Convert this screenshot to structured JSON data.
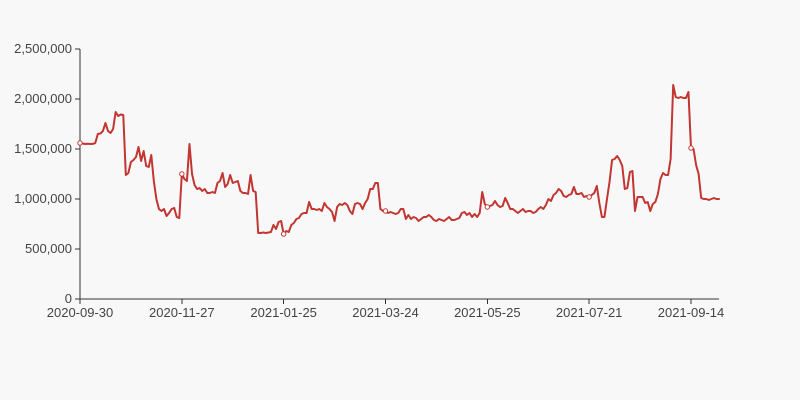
{
  "chart_data": {
    "type": "line",
    "title": "",
    "xlabel": "",
    "ylabel": "",
    "ylim": [
      0,
      2500000
    ],
    "grid": false,
    "colors": {
      "line": "#c23531",
      "axis": "#333333",
      "background": "#f8f8f8"
    },
    "y_ticks": [
      0,
      500000,
      1000000,
      1500000,
      2000000,
      2500000
    ],
    "y_tick_labels": [
      "0",
      "500,000",
      "1,000,000",
      "1,500,000",
      "2,000,000",
      "2,500,000"
    ],
    "x_tick_labels": [
      "2020-09-30",
      "2020-11-27",
      "2021-01-25",
      "2021-03-24",
      "2021-05-25",
      "2021-07-21",
      "2021-09-14"
    ],
    "x_tick_indices": [
      0,
      40,
      80,
      120,
      160,
      200,
      240
    ],
    "total_points": 252,
    "series": [
      {
        "values": [
          1560000,
          1555000,
          1550000,
          1552000,
          1550000,
          1551000,
          1560000,
          1650000,
          1655000,
          1680000,
          1760000,
          1680000,
          1660000,
          1700000,
          1870000,
          1830000,
          1845000,
          1840000,
          1240000,
          1260000,
          1370000,
          1390000,
          1420000,
          1520000,
          1380000,
          1480000,
          1330000,
          1320000,
          1440000,
          1180000,
          1000000,
          900000,
          880000,
          900000,
          830000,
          860000,
          900000,
          910000,
          820000,
          810000,
          1250000,
          1200000,
          1180000,
          1550000,
          1250000,
          1140000,
          1100000,
          1110000,
          1080000,
          1100000,
          1060000,
          1060000,
          1070000,
          1060000,
          1160000,
          1180000,
          1260000,
          1120000,
          1150000,
          1240000,
          1160000,
          1170000,
          1180000,
          1080000,
          1060000,
          1060000,
          1050000,
          1240000,
          1080000,
          1070000,
          660000,
          660000,
          665000,
          660000,
          665000,
          670000,
          740000,
          700000,
          770000,
          780000,
          650000,
          680000,
          670000,
          740000,
          760000,
          800000,
          810000,
          850000,
          860000,
          860000,
          970000,
          900000,
          900000,
          890000,
          900000,
          880000,
          960000,
          920000,
          900000,
          870000,
          780000,
          920000,
          950000,
          940000,
          960000,
          940000,
          880000,
          850000,
          950000,
          960000,
          950000,
          900000,
          960000,
          1000000,
          1100000,
          1100000,
          1160000,
          1160000,
          900000,
          880000,
          880000,
          860000,
          870000,
          860000,
          850000,
          860000,
          900000,
          900000,
          800000,
          840000,
          800000,
          820000,
          810000,
          780000,
          800000,
          820000,
          820000,
          840000,
          820000,
          790000,
          780000,
          800000,
          790000,
          780000,
          800000,
          820000,
          790000,
          790000,
          800000,
          810000,
          860000,
          870000,
          840000,
          860000,
          820000,
          850000,
          820000,
          860000,
          1070000,
          950000,
          920000,
          930000,
          940000,
          980000,
          940000,
          920000,
          930000,
          1010000,
          960000,
          900000,
          900000,
          880000,
          860000,
          880000,
          900000,
          870000,
          880000,
          880000,
          860000,
          870000,
          900000,
          920000,
          900000,
          940000,
          1000000,
          980000,
          1040000,
          1060000,
          1100000,
          1080000,
          1030000,
          1020000,
          1040000,
          1050000,
          1120000,
          1050000,
          1050000,
          1060000,
          1020000,
          1030000,
          1020000,
          1040000,
          1060000,
          1130000,
          960000,
          820000,
          820000,
          1000000,
          1170000,
          1390000,
          1400000,
          1430000,
          1390000,
          1330000,
          1100000,
          1110000,
          1270000,
          1280000,
          880000,
          1020000,
          1020000,
          1020000,
          960000,
          970000,
          880000,
          950000,
          970000,
          1050000,
          1200000,
          1260000,
          1240000,
          1240000,
          1400000,
          2140000,
          2020000,
          2010000,
          2020000,
          2010000,
          2010000,
          2070000,
          1510000,
          1500000,
          1340000,
          1250000,
          1010000,
          1000000,
          1000000,
          990000,
          1000000,
          1010000,
          1000000,
          1000000
        ],
        "markers": [
          0,
          40,
          80,
          120,
          160,
          200,
          240
        ]
      }
    ]
  }
}
